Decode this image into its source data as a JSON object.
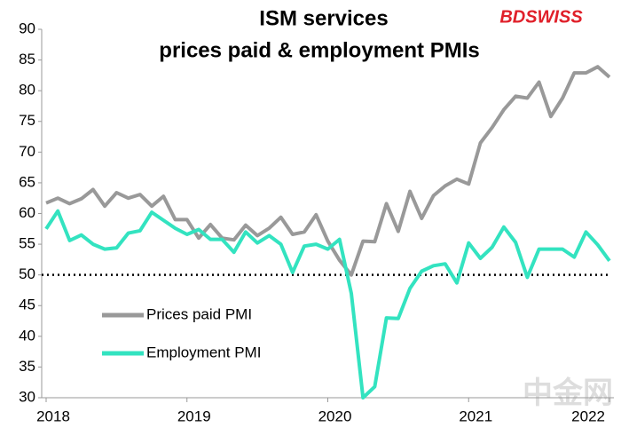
{
  "chart_data": {
    "type": "line",
    "title": [
      "ISM services",
      "prices paid & employment PMIs"
    ],
    "logo": "BDSWISS",
    "watermark": "中金网",
    "categories": [
      "2018",
      null,
      null,
      null,
      null,
      null,
      null,
      null,
      null,
      null,
      null,
      null,
      "2019",
      null,
      null,
      null,
      null,
      null,
      null,
      null,
      null,
      null,
      null,
      null,
      "2020",
      null,
      null,
      null,
      null,
      null,
      null,
      null,
      null,
      null,
      null,
      null,
      "2021",
      null,
      null,
      null,
      null,
      null,
      null,
      null,
      null,
      null,
      null,
      null,
      "2022"
    ],
    "series": [
      {
        "name": "Prices paid PMI",
        "color": "#999999",
        "values": [
          61.7,
          62.5,
          61.6,
          62.4,
          63.9,
          61.2,
          63.4,
          62.5,
          63.1,
          61.2,
          62.8,
          59.0,
          59.0,
          56.0,
          58.2,
          56.0,
          55.7,
          58.1,
          56.4,
          57.6,
          59.4,
          56.6,
          57.0,
          59.8,
          55.5,
          52.4,
          50.0,
          55.5,
          55.4,
          61.6,
          57.1,
          63.6,
          59.2,
          62.9,
          64.5,
          65.6,
          64.8,
          71.5,
          74.0,
          76.9,
          79.1,
          78.8,
          81.4,
          75.8,
          78.8,
          82.9,
          82.9,
          83.9,
          82.2
        ]
      },
      {
        "name": "Employment PMI",
        "color": "#33e3c0",
        "values": [
          57.5,
          60.4,
          55.6,
          56.5,
          55.0,
          54.2,
          54.4,
          56.8,
          57.2,
          60.2,
          58.9,
          57.6,
          56.6,
          57.4,
          55.8,
          55.8,
          53.7,
          57.0,
          55.2,
          56.4,
          55.0,
          50.4,
          54.7,
          55.0,
          54.2,
          55.8,
          47.0,
          30.0,
          31.8,
          43.0,
          42.9,
          47.8,
          50.6,
          51.5,
          51.8,
          48.7,
          55.2,
          52.7,
          54.5,
          57.8,
          55.3,
          49.6,
          54.2,
          54.2,
          54.2,
          52.9,
          57.0,
          54.9,
          52.3
        ]
      }
    ],
    "reference_line": 50,
    "ylim": [
      30,
      90
    ],
    "yticks": [
      30,
      35,
      40,
      45,
      50,
      55,
      60,
      65,
      70,
      75,
      80,
      85,
      90
    ],
    "grid": false
  }
}
